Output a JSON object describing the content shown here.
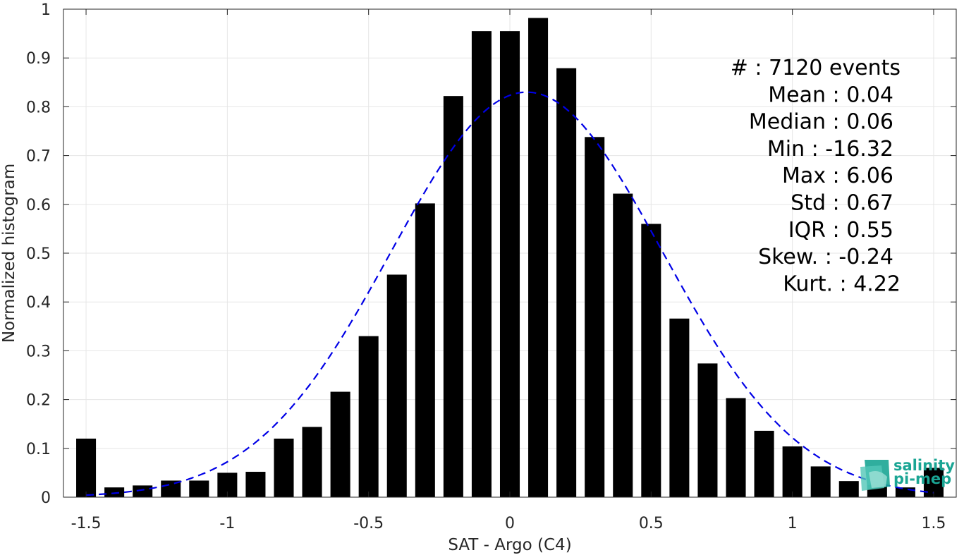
{
  "chart_data": {
    "type": "bar",
    "xlabel": "SAT - Argo (C4)",
    "ylabel": "Normalized histogram",
    "xlim": [
      -1.58,
      1.58
    ],
    "ylim": [
      0,
      1
    ],
    "grid": true,
    "x_ticks": [
      -1.5,
      -1,
      -0.5,
      0,
      0.5,
      1,
      1.5
    ],
    "x_tick_labels": [
      "-1.5",
      "-1",
      "-0.5",
      "0",
      "0.5",
      "1",
      "1.5"
    ],
    "y_ticks": [
      0,
      0.1,
      0.2,
      0.3,
      0.4,
      0.5,
      0.6,
      0.7,
      0.8,
      0.9,
      1
    ],
    "y_tick_labels": [
      "0",
      "0.1",
      "0.2",
      "0.3",
      "0.4",
      "0.5",
      "0.6",
      "0.7",
      "0.8",
      "0.9",
      "1"
    ],
    "bar_color": "#000000",
    "bin_width": 0.1,
    "x": [
      -1.5,
      -1.4,
      -1.3,
      -1.2,
      -1.1,
      -1.0,
      -0.9,
      -0.8,
      -0.7,
      -0.6,
      -0.5,
      -0.4,
      -0.3,
      -0.2,
      -0.1,
      0.0,
      0.1,
      0.2,
      0.3,
      0.4,
      0.5,
      0.6,
      0.7,
      0.8,
      0.9,
      1.0,
      1.1,
      1.2,
      1.3,
      1.4,
      1.5
    ],
    "values": [
      0.12,
      0.02,
      0.024,
      0.034,
      0.034,
      0.05,
      0.052,
      0.12,
      0.144,
      0.216,
      0.33,
      0.456,
      0.602,
      0.822,
      0.955,
      0.955,
      0.982,
      0.879,
      0.738,
      0.622,
      0.56,
      0.366,
      0.274,
      0.203,
      0.136,
      0.104,
      0.063,
      0.033,
      0.025,
      0.02,
      0.06
    ],
    "fit_curve": {
      "type": "gaussian",
      "color": "#0000e6",
      "style": "dashed",
      "peak": 0.83,
      "mean": 0.06,
      "std": 0.48
    },
    "stats": [
      {
        "label": "#  : 7120 events"
      },
      {
        "label": "Mean : 0.04"
      },
      {
        "label": "Median : 0.06"
      },
      {
        "label": "Min : -16.32"
      },
      {
        "label": "Max : 6.06"
      },
      {
        "label": "Std : 0.67"
      },
      {
        "label": "IQR : 0.55"
      },
      {
        "label": "Skew. : -0.24"
      },
      {
        "label": "Kurt. : 4.22"
      }
    ]
  },
  "logo": {
    "line1": "salinity",
    "line2": "pi-mep"
  }
}
